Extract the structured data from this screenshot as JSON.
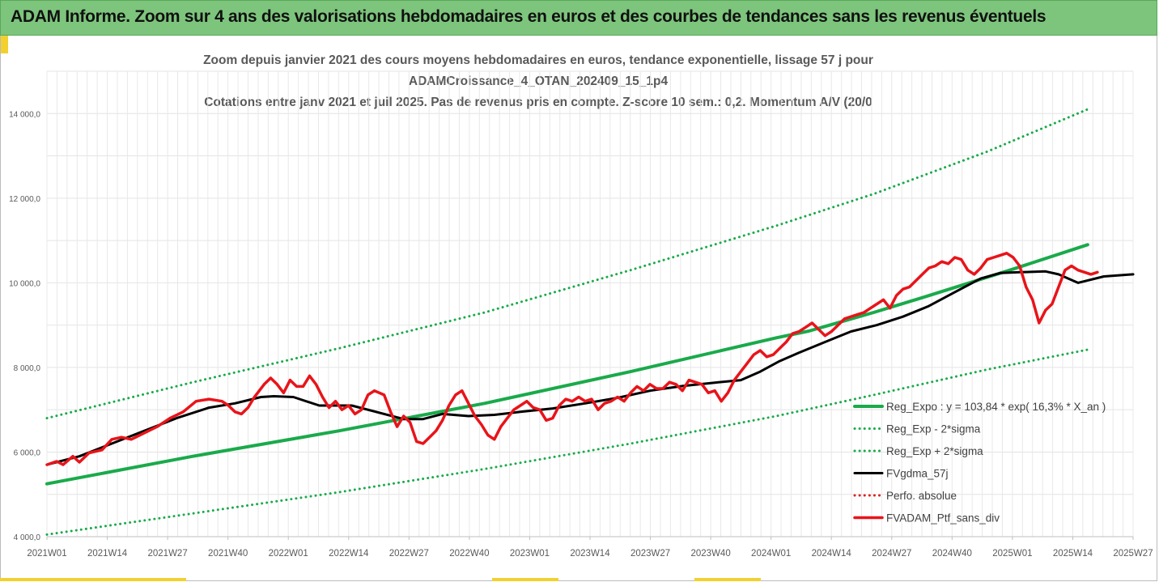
{
  "header": {
    "title": "ADAM Informe. Zoom sur 4 ans des valorisations hebdomadaires en euros et des courbes de tendances sans les revenus éventuels"
  },
  "chart_data": {
    "type": "line",
    "title_lines": [
      "Zoom depuis janvier 2021 des cours moyens hebdomadaires  en euros, tendance exponentielle, lissage 57 j pour",
      "ADAMCroissance_4_OTAN_202409_15_1p4",
      "Cotations entre janv 2021 et juil 2025. Pas de revenus pris en compte. Z-score 10 sem.: 0,2. Momentum A/V (20/0"
    ],
    "ylim": [
      4000,
      15000
    ],
    "y_ticks": [
      {
        "value": 4000,
        "label": "4 000,0"
      },
      {
        "value": 6000,
        "label": "6 000,0"
      },
      {
        "value": 8000,
        "label": "8 000,0"
      },
      {
        "value": 10000,
        "label": "10 000,0"
      },
      {
        "value": 12000,
        "label": "12 000,0"
      },
      {
        "value": 14000,
        "label": "14 000,0"
      }
    ],
    "x_ticks": [
      "2021W01",
      "2021W14",
      "2021W27",
      "2021W40",
      "2022W01",
      "2022W14",
      "2022W27",
      "2022W40",
      "2023W01",
      "2023W14",
      "2023W27",
      "2023W40",
      "2024W01",
      "2024W14",
      "2024W27",
      "2024W40",
      "2025W01",
      "2025W14",
      "2025W27"
    ],
    "grid": true,
    "legend_position": "bottom-right",
    "series": [
      {
        "name": "Reg_Expo : y = 103,84 * exp( 16,3% *  X_an )",
        "color": "#1aaa4b",
        "style": "solid",
        "width": 4,
        "points": [
          [
            0,
            5250
          ],
          [
            45,
            5900
          ],
          [
            90,
            6500
          ],
          [
            135,
            7150
          ],
          [
            180,
            7900
          ],
          [
            225,
            8700
          ],
          [
            235,
            8860
          ],
          [
            255,
            9300
          ],
          [
            270,
            9650
          ],
          [
            297,
            10300
          ],
          [
            321,
            10900
          ]
        ]
      },
      {
        "name": "Reg_Exp - 2*sigma",
        "color": "#1aaa4b",
        "style": "dotted",
        "width": 3,
        "points": [
          [
            0,
            4050
          ],
          [
            45,
            4550
          ],
          [
            90,
            5050
          ],
          [
            135,
            5600
          ],
          [
            180,
            6200
          ],
          [
            225,
            6850
          ],
          [
            255,
            7350
          ],
          [
            290,
            7950
          ],
          [
            321,
            8420
          ]
        ]
      },
      {
        "name": "Reg_Exp + 2*sigma",
        "color": "#1aaa4b",
        "style": "dotted",
        "width": 3,
        "points": [
          [
            0,
            6800
          ],
          [
            45,
            7650
          ],
          [
            90,
            8450
          ],
          [
            135,
            9300
          ],
          [
            180,
            10300
          ],
          [
            225,
            11350
          ],
          [
            255,
            12100
          ],
          [
            290,
            13100
          ],
          [
            321,
            14100
          ]
        ]
      },
      {
        "name": "FVgdma_57j",
        "color": "#000000",
        "style": "solid",
        "width": 3,
        "points": [
          [
            0,
            5700
          ],
          [
            10,
            5900
          ],
          [
            20,
            6200
          ],
          [
            30,
            6500
          ],
          [
            40,
            6800
          ],
          [
            50,
            7050
          ],
          [
            58,
            7150
          ],
          [
            66,
            7300
          ],
          [
            70,
            7320
          ],
          [
            76,
            7300
          ],
          [
            84,
            7100
          ],
          [
            94,
            7100
          ],
          [
            104,
            6900
          ],
          [
            110,
            6780
          ],
          [
            116,
            6780
          ],
          [
            122,
            6900
          ],
          [
            130,
            6850
          ],
          [
            138,
            6880
          ],
          [
            146,
            6950
          ],
          [
            156,
            7030
          ],
          [
            166,
            7150
          ],
          [
            176,
            7280
          ],
          [
            186,
            7450
          ],
          [
            196,
            7560
          ],
          [
            206,
            7640
          ],
          [
            214,
            7700
          ],
          [
            220,
            7900
          ],
          [
            226,
            8150
          ],
          [
            232,
            8350
          ],
          [
            240,
            8600
          ],
          [
            248,
            8850
          ],
          [
            256,
            9000
          ],
          [
            264,
            9200
          ],
          [
            272,
            9450
          ],
          [
            280,
            9780
          ],
          [
            288,
            10100
          ],
          [
            294,
            10230
          ],
          [
            300,
            10250
          ],
          [
            308,
            10270
          ],
          [
            312,
            10200
          ],
          [
            318,
            10000
          ],
          [
            326,
            10150
          ],
          [
            335,
            10200
          ]
        ]
      },
      {
        "name": "Perfo. absolue",
        "color": "#e02020",
        "style": "dotted",
        "width": 2,
        "points": []
      },
      {
        "name": "FVADAM_Ptf_sans_div",
        "color": "#e8141a",
        "style": "solid",
        "width": 3.5,
        "points": [
          [
            0,
            5700
          ],
          [
            3,
            5780
          ],
          [
            5,
            5700
          ],
          [
            8,
            5900
          ],
          [
            10,
            5760
          ],
          [
            13,
            5980
          ],
          [
            17,
            6050
          ],
          [
            20,
            6300
          ],
          [
            23,
            6350
          ],
          [
            26,
            6300
          ],
          [
            30,
            6450
          ],
          [
            34,
            6600
          ],
          [
            38,
            6800
          ],
          [
            42,
            6950
          ],
          [
            46,
            7200
          ],
          [
            50,
            7250
          ],
          [
            54,
            7200
          ],
          [
            56,
            7100
          ],
          [
            58,
            6950
          ],
          [
            60,
            6900
          ],
          [
            62,
            7050
          ],
          [
            64,
            7300
          ],
          [
            67,
            7600
          ],
          [
            69,
            7750
          ],
          [
            71,
            7600
          ],
          [
            73,
            7400
          ],
          [
            75,
            7700
          ],
          [
            77,
            7550
          ],
          [
            79,
            7550
          ],
          [
            81,
            7800
          ],
          [
            83,
            7600
          ],
          [
            85,
            7300
          ],
          [
            87,
            7050
          ],
          [
            89,
            7200
          ],
          [
            91,
            7000
          ],
          [
            93,
            7100
          ],
          [
            95,
            6900
          ],
          [
            97,
            7000
          ],
          [
            99,
            7350
          ],
          [
            101,
            7450
          ],
          [
            104,
            7350
          ],
          [
            106,
            6950
          ],
          [
            108,
            6600
          ],
          [
            110,
            6850
          ],
          [
            112,
            6700
          ],
          [
            114,
            6250
          ],
          [
            116,
            6200
          ],
          [
            118,
            6350
          ],
          [
            120,
            6500
          ],
          [
            122,
            6750
          ],
          [
            124,
            7100
          ],
          [
            126,
            7350
          ],
          [
            128,
            7450
          ],
          [
            130,
            7150
          ],
          [
            132,
            6850
          ],
          [
            134,
            6650
          ],
          [
            136,
            6400
          ],
          [
            138,
            6300
          ],
          [
            140,
            6600
          ],
          [
            142,
            6800
          ],
          [
            144,
            7000
          ],
          [
            146,
            7100
          ],
          [
            148,
            7200
          ],
          [
            150,
            7050
          ],
          [
            152,
            7000
          ],
          [
            154,
            6750
          ],
          [
            156,
            6800
          ],
          [
            158,
            7100
          ],
          [
            160,
            7250
          ],
          [
            162,
            7200
          ],
          [
            164,
            7300
          ],
          [
            166,
            7200
          ],
          [
            168,
            7250
          ],
          [
            170,
            7000
          ],
          [
            172,
            7150
          ],
          [
            174,
            7200
          ],
          [
            176,
            7300
          ],
          [
            178,
            7200
          ],
          [
            180,
            7400
          ],
          [
            182,
            7550
          ],
          [
            184,
            7450
          ],
          [
            186,
            7600
          ],
          [
            188,
            7500
          ],
          [
            190,
            7500
          ],
          [
            192,
            7650
          ],
          [
            194,
            7600
          ],
          [
            196,
            7450
          ],
          [
            198,
            7700
          ],
          [
            200,
            7650
          ],
          [
            202,
            7600
          ],
          [
            204,
            7400
          ],
          [
            206,
            7450
          ],
          [
            208,
            7200
          ],
          [
            210,
            7400
          ],
          [
            212,
            7700
          ],
          [
            214,
            7900
          ],
          [
            216,
            8100
          ],
          [
            218,
            8300
          ],
          [
            220,
            8400
          ],
          [
            222,
            8250
          ],
          [
            224,
            8300
          ],
          [
            226,
            8450
          ],
          [
            228,
            8600
          ],
          [
            230,
            8800
          ],
          [
            232,
            8850
          ],
          [
            234,
            8950
          ],
          [
            236,
            9050
          ],
          [
            238,
            8900
          ],
          [
            240,
            8750
          ],
          [
            242,
            8850
          ],
          [
            244,
            9000
          ],
          [
            246,
            9150
          ],
          [
            248,
            9200
          ],
          [
            250,
            9250
          ],
          [
            252,
            9300
          ],
          [
            254,
            9400
          ],
          [
            256,
            9500
          ],
          [
            258,
            9600
          ],
          [
            260,
            9400
          ],
          [
            262,
            9700
          ],
          [
            264,
            9850
          ],
          [
            266,
            9900
          ],
          [
            268,
            10050
          ],
          [
            270,
            10200
          ],
          [
            272,
            10350
          ],
          [
            274,
            10400
          ],
          [
            276,
            10500
          ],
          [
            278,
            10450
          ],
          [
            280,
            10600
          ],
          [
            282,
            10550
          ],
          [
            284,
            10300
          ],
          [
            286,
            10200
          ],
          [
            288,
            10350
          ],
          [
            290,
            10550
          ],
          [
            292,
            10600
          ],
          [
            294,
            10650
          ],
          [
            296,
            10700
          ],
          [
            298,
            10600
          ],
          [
            300,
            10400
          ],
          [
            302,
            9900
          ],
          [
            304,
            9600
          ],
          [
            306,
            9050
          ],
          [
            308,
            9350
          ],
          [
            310,
            9500
          ],
          [
            312,
            9900
          ],
          [
            314,
            10300
          ],
          [
            316,
            10400
          ],
          [
            318,
            10300
          ],
          [
            320,
            10250
          ],
          [
            322,
            10200
          ],
          [
            324,
            10250
          ]
        ]
      }
    ]
  }
}
